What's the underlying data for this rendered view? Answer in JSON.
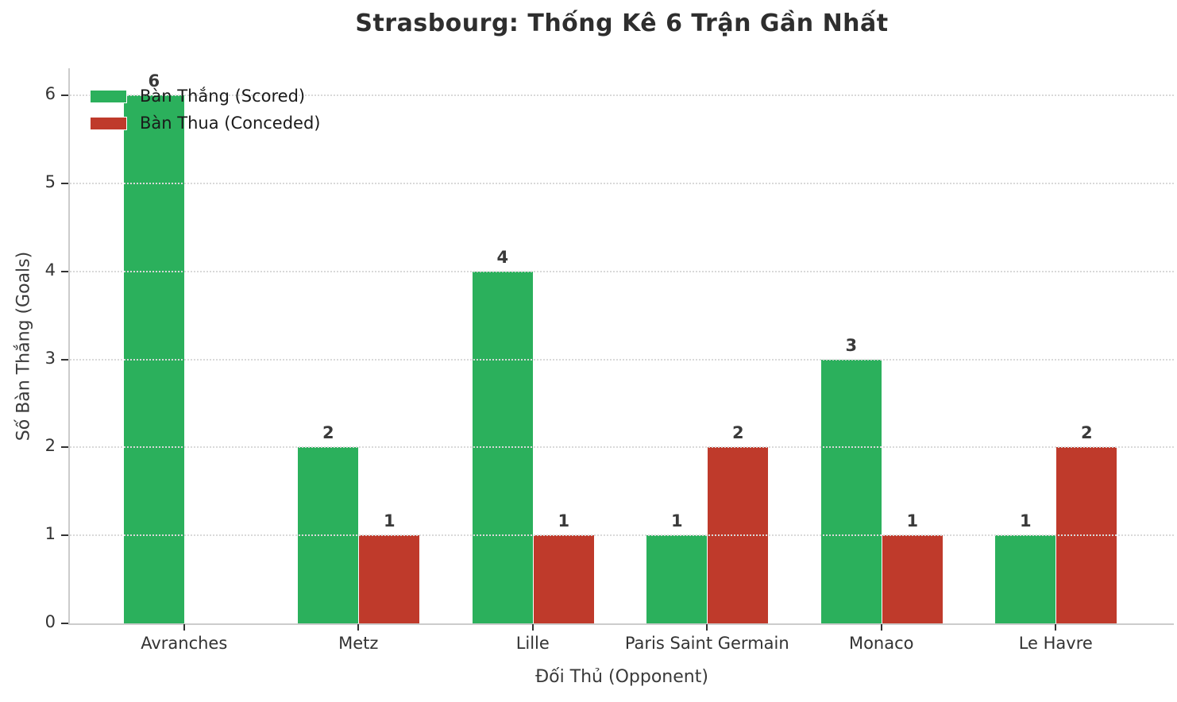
{
  "chart_data": {
    "type": "bar",
    "title": "Strasbourg: Thống Kê 6 Trận Gần Nhất",
    "xlabel": "Đối Thủ (Opponent)",
    "ylabel": "Số Bàn Thắng (Goals)",
    "categories": [
      "Avranches",
      "Metz",
      "Lille",
      "Paris Saint Germain",
      "Monaco",
      "Le Havre"
    ],
    "series": [
      {
        "name": "Bàn Thắng (Scored)",
        "color": "#2bb05c",
        "values": [
          6,
          2,
          4,
          1,
          3,
          1
        ]
      },
      {
        "name": "Bàn Thua (Conceded)",
        "color": "#bf3a2b",
        "values": [
          0,
          1,
          1,
          2,
          1,
          2
        ]
      }
    ],
    "yticks": [
      0,
      1,
      2,
      3,
      4,
      5,
      6
    ],
    "ylim": [
      0,
      6.3
    ],
    "grid": "horizontal-dotted",
    "legend_position": "upper-left",
    "bar_value_labels": true,
    "value_label_hidden_when_zero": true
  },
  "colors": {
    "background": "#ffffff",
    "grid": "#d9d9d9",
    "spine": "#cccccc",
    "tick": "#333333",
    "title_text": "#2e2e2e",
    "axis_label_text": "#3a3a3a",
    "tick_label_text": "#333333",
    "value_label_text": "#3a3a3a",
    "legend_text": "#1a1a1a"
  }
}
